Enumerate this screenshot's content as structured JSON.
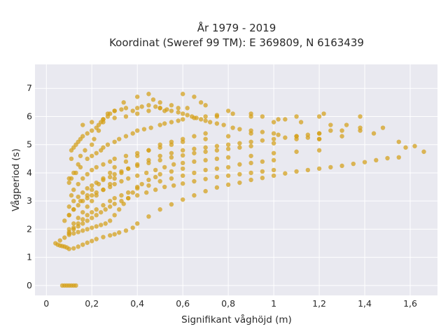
{
  "chart_data": {
    "type": "scatter",
    "title_line1": "År 1979 - 2019",
    "title_line2": "Koordinat (Sweref 99 TM): E 369809, N 6163439",
    "xlabel": "Signifikant våghöjd (m)",
    "ylabel": "Vågperiod (s)",
    "xlim": [
      -0.05,
      1.72
    ],
    "ylim": [
      -0.35,
      7.85
    ],
    "x_ticks": [
      0,
      0.2,
      0.4,
      0.6,
      0.8,
      1.0,
      1.2,
      1.4,
      1.6
    ],
    "x_tick_labels": [
      "0",
      "0,2",
      "0,4",
      "0,6",
      "0,8",
      "1",
      "1,2",
      "1,4",
      "1,6"
    ],
    "y_ticks": [
      0,
      1,
      2,
      3,
      4,
      5,
      6,
      7
    ],
    "y_tick_labels": [
      "0",
      "1",
      "2",
      "3",
      "4",
      "5",
      "6",
      "7"
    ],
    "grid": true,
    "background": "#e9e9f0",
    "marker_color": "#d4a017",
    "series": [
      {
        "x": [
          0.07,
          0.08,
          0.09,
          0.1,
          0.11,
          0.12,
          0.13,
          0.04,
          0.05,
          0.06,
          0.07,
          0.08,
          0.09,
          0.1,
          0.12,
          0.14,
          0.16,
          0.18,
          0.2,
          0.22,
          0.25,
          0.28,
          0.3,
          0.32,
          0.35,
          0.38,
          0.4,
          0.45,
          0.5,
          0.55,
          0.6,
          0.65,
          0.7,
          0.75,
          0.8,
          0.85,
          0.9,
          0.95,
          1.0,
          1.05,
          1.1,
          1.15,
          1.2,
          1.25,
          1.3,
          1.35,
          1.4,
          1.45,
          1.5,
          1.55,
          1.58,
          1.62,
          1.66,
          0.06,
          0.08,
          0.1,
          0.12,
          0.14,
          0.16,
          0.18,
          0.2,
          0.22,
          0.24,
          0.26,
          0.28,
          0.3,
          0.33,
          0.36,
          0.4,
          0.44,
          0.48,
          0.52,
          0.56,
          0.6,
          0.65,
          0.7,
          0.75,
          0.8,
          0.85,
          0.9,
          0.95,
          1.0,
          0.08,
          0.1,
          0.12,
          0.14,
          0.16,
          0.18,
          0.2,
          0.22,
          0.25,
          0.28,
          0.3,
          0.33,
          0.36,
          0.4,
          0.44,
          0.48,
          0.52,
          0.56,
          0.6,
          0.65,
          0.7,
          0.75,
          0.8,
          0.9,
          1.0,
          1.1,
          1.2,
          0.1,
          0.12,
          0.14,
          0.16,
          0.18,
          0.2,
          0.22,
          0.25,
          0.28,
          0.3,
          0.33,
          0.36,
          0.4,
          0.45,
          0.5,
          0.55,
          0.6,
          0.65,
          0.7,
          0.75,
          0.8,
          0.85,
          0.9,
          1.0,
          1.1,
          1.2,
          1.3,
          1.38,
          0.11,
          0.12,
          0.14,
          0.16,
          0.18,
          0.2,
          0.22,
          0.25,
          0.28,
          0.3,
          0.35,
          0.4,
          0.45,
          0.5,
          0.55,
          0.6,
          0.7,
          0.8,
          0.9,
          0.1,
          0.11,
          0.13,
          0.15,
          0.18,
          0.2,
          0.22,
          0.24,
          0.25,
          0.27,
          0.3,
          0.32,
          0.35,
          0.38,
          0.4,
          0.43,
          0.46,
          0.5,
          0.52,
          0.55,
          0.58,
          0.6,
          0.65,
          0.7,
          0.75,
          0.82,
          0.9,
          0.95,
          1.02,
          1.12,
          1.2,
          1.22,
          1.25,
          1.3,
          1.32,
          1.38,
          1.44,
          1.48,
          1.55,
          0.1,
          0.11,
          0.12,
          0.14,
          0.15,
          0.17,
          0.2,
          0.21,
          0.23,
          0.25,
          0.27,
          0.3,
          0.34,
          0.4,
          0.45,
          0.47,
          0.5,
          0.52,
          0.55,
          0.58,
          0.6,
          0.62,
          0.65,
          0.68,
          0.7,
          0.75,
          0.8,
          0.9,
          1.0,
          1.05,
          1.1,
          1.2,
          1.25,
          1.38,
          0.11,
          0.12,
          0.13,
          0.14,
          0.15,
          0.16,
          0.18,
          0.2,
          0.22,
          0.23,
          0.24,
          0.25,
          0.27,
          0.28,
          0.3,
          0.33,
          0.35,
          0.38,
          0.4,
          0.42,
          0.45,
          0.48,
          0.5,
          0.53,
          0.55,
          0.58,
          0.6,
          0.62,
          0.64,
          0.66,
          0.68,
          0.7,
          0.72,
          0.75,
          0.78,
          0.82,
          0.85,
          0.9,
          0.95,
          1.0,
          1.02,
          1.1,
          1.15,
          1.2,
          0.1,
          0.12,
          0.14,
          0.16,
          0.18,
          0.2,
          0.22,
          0.25,
          0.28,
          0.3,
          0.33,
          0.36,
          0.4,
          0.45,
          0.5,
          0.55,
          0.6,
          0.65,
          0.7,
          0.75,
          0.8,
          0.85,
          0.9,
          0.95,
          1.0,
          1.05,
          1.1,
          1.15,
          1.2,
          0.1,
          0.12,
          0.15,
          0.18,
          0.2,
          0.23,
          0.25,
          0.28,
          0.3,
          0.35,
          0.4,
          0.45,
          0.5,
          0.55,
          0.6,
          0.65,
          0.7,
          0.16,
          0.2,
          0.25,
          0.3,
          0.35,
          0.4,
          0.45,
          0.5,
          0.1,
          0.12,
          0.14,
          0.16,
          0.18,
          0.2,
          0.22,
          0.24,
          0.26,
          0.28,
          0.3,
          0.32,
          0.34,
          0.36,
          0.38,
          0.4,
          0.42,
          0.45,
          0.48,
          0.5,
          0.55,
          0.6,
          0.1,
          0.12,
          0.14,
          0.16,
          0.18,
          0.2,
          0.22,
          0.25,
          0.28,
          0.3,
          0.33,
          0.36,
          0.4,
          0.45,
          0.5,
          0.55,
          0.6,
          0.65,
          0.7,
          0.75,
          0.8,
          0.85,
          0.9,
          0.95,
          1.0
        ],
        "y": [
          0,
          0,
          0,
          0,
          0,
          0,
          0,
          1.5,
          1.45,
          1.42,
          1.4,
          1.38,
          1.35,
          1.3,
          1.32,
          1.38,
          1.45,
          1.52,
          1.58,
          1.65,
          1.72,
          1.78,
          1.82,
          1.88,
          1.95,
          2.05,
          2.2,
          2.45,
          2.7,
          2.88,
          3.05,
          3.2,
          3.35,
          3.48,
          3.58,
          3.65,
          3.75,
          3.82,
          3.9,
          3.98,
          4.05,
          4.1,
          4.15,
          4.2,
          4.25,
          4.32,
          4.38,
          4.45,
          4.52,
          4.55,
          4.9,
          4.95,
          4.75,
          1.6,
          1.7,
          1.85,
          2.0,
          2.1,
          2.2,
          2.3,
          2.4,
          2.5,
          2.6,
          2.7,
          2.8,
          2.9,
          3.0,
          3.1,
          3.2,
          3.3,
          3.4,
          3.5,
          3.55,
          3.62,
          3.7,
          3.78,
          3.85,
          3.9,
          3.95,
          4.0,
          4.05,
          4.1,
          2.3,
          2.5,
          2.7,
          2.85,
          3.0,
          3.1,
          3.2,
          3.3,
          3.4,
          3.5,
          3.6,
          3.7,
          3.8,
          3.9,
          4.0,
          4.1,
          4.2,
          4.3,
          4.35,
          4.4,
          4.45,
          4.5,
          4.55,
          4.6,
          4.7,
          4.75,
          4.8,
          2.8,
          3.0,
          3.15,
          3.3,
          3.45,
          3.55,
          3.65,
          3.75,
          3.85,
          3.95,
          4.05,
          4.15,
          4.25,
          4.35,
          4.45,
          4.55,
          4.62,
          4.7,
          4.75,
          4.8,
          4.85,
          4.9,
          4.95,
          5.05,
          5.2,
          5.4,
          5.5,
          5.6,
          3.2,
          3.4,
          3.6,
          3.8,
          3.95,
          4.1,
          4.2,
          4.3,
          4.4,
          4.5,
          4.6,
          4.7,
          4.8,
          4.9,
          5.0,
          5.1,
          5.2,
          5.3,
          5.4,
          3.65,
          3.8,
          4.0,
          4.2,
          4.5,
          4.6,
          4.7,
          4.8,
          4.9,
          5.0,
          5.1,
          5.2,
          5.3,
          5.4,
          5.5,
          5.55,
          5.6,
          5.7,
          5.75,
          5.8,
          5.85,
          5.9,
          5.95,
          6.0,
          6.05,
          6.1,
          6.1,
          6.0,
          5.9,
          5.8,
          6.0,
          6.1,
          5.5,
          5.3,
          5.7,
          5.5,
          5.4,
          5.6,
          5.1,
          3.8,
          4.5,
          4.0,
          4.3,
          4.6,
          4.8,
          5.0,
          5.2,
          5.5,
          5.8,
          6.1,
          6.2,
          6.5,
          6.7,
          6.8,
          6.6,
          6.5,
          6.2,
          6.4,
          6.3,
          6.8,
          6.3,
          6.7,
          6.5,
          6.4,
          6.0,
          6.2,
          6.0,
          5.8,
          5.9,
          6.0,
          5.2,
          5.7,
          6.0,
          4.8,
          4.9,
          5.0,
          5.1,
          5.2,
          5.3,
          5.4,
          5.5,
          5.6,
          5.7,
          5.8,
          5.9,
          6.0,
          6.1,
          6.2,
          6.25,
          6.3,
          6.2,
          6.3,
          6.35,
          6.4,
          6.35,
          6.3,
          6.25,
          6.2,
          6.15,
          6.1,
          6.05,
          6.0,
          5.95,
          5.9,
          5.85,
          5.8,
          5.75,
          5.7,
          5.6,
          5.55,
          5.5,
          5.45,
          5.4,
          5.35,
          5.3,
          5.25,
          5.2,
          2.0,
          2.2,
          2.4,
          2.6,
          2.8,
          3.0,
          3.2,
          3.4,
          3.6,
          3.8,
          4.0,
          4.15,
          4.3,
          4.45,
          4.6,
          4.7,
          4.8,
          4.85,
          4.9,
          4.95,
          5.0,
          5.05,
          5.1,
          5.15,
          5.2,
          5.25,
          5.3,
          5.35,
          5.4,
          2.5,
          2.7,
          3.0,
          3.2,
          3.4,
          3.6,
          3.8,
          4.0,
          4.2,
          4.4,
          4.6,
          4.8,
          5.0,
          5.1,
          5.2,
          5.3,
          5.4,
          5.7,
          5.8,
          5.9,
          5.95,
          6.0,
          6.1,
          6.2,
          6.3,
          1.8,
          1.85,
          1.9,
          1.95,
          2.0,
          2.05,
          2.1,
          2.15,
          2.2,
          2.3,
          2.5,
          2.7,
          2.9,
          3.1,
          3.3,
          3.5,
          3.6,
          3.75,
          3.85,
          3.95,
          4.05,
          4.15,
          1.9,
          2.05,
          2.2,
          2.35,
          2.5,
          2.6,
          2.7,
          2.85,
          3.0,
          3.1,
          3.2,
          3.3,
          3.45,
          3.55,
          3.7,
          3.8,
          3.9,
          4.0,
          4.1,
          4.15,
          4.2,
          4.3,
          4.35,
          4.4,
          4.45
        ]
      }
    ]
  }
}
